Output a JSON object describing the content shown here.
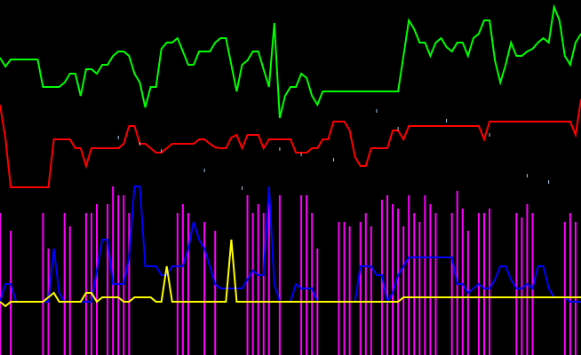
{
  "chart_data": {
    "type": "line",
    "title": "",
    "xlabel": "",
    "ylabel": "",
    "grid": false,
    "legend": "none",
    "background": "#000000",
    "x": [
      0,
      1,
      2,
      3,
      4,
      5,
      6,
      7,
      8,
      9,
      10,
      11,
      12,
      13,
      14,
      15,
      16,
      17,
      18,
      19,
      20,
      21,
      22,
      23,
      24,
      25,
      26,
      27,
      28,
      29,
      30,
      31,
      32,
      33,
      34,
      35,
      36,
      37,
      38,
      39,
      40,
      41,
      42,
      43,
      44,
      45,
      46,
      47,
      48,
      49,
      50,
      51,
      52,
      53,
      54,
      55,
      56,
      57,
      58,
      59,
      60,
      61,
      62,
      63,
      64,
      65,
      66,
      67,
      68,
      69,
      70,
      71,
      72,
      73,
      74,
      75,
      76,
      77,
      78,
      79,
      80,
      81,
      82,
      83,
      84,
      85,
      86,
      87,
      88,
      89,
      90,
      91,
      92,
      93,
      94,
      95,
      96,
      97,
      98,
      99,
      100,
      101,
      102,
      103,
      104,
      105,
      106,
      107,
      108
    ],
    "xlim": [
      0,
      108
    ],
    "ylim": [
      0,
      400
    ],
    "series": [
      {
        "color": "#00ff00",
        "style": "line",
        "values": [
          335,
          325,
          333,
          333,
          333,
          333,
          333,
          333,
          302,
          302,
          302,
          302,
          307,
          317,
          317,
          292,
          322,
          322,
          317,
          327,
          327,
          337,
          342,
          342,
          337,
          317,
          307,
          279,
          302,
          302,
          345,
          352,
          352,
          357,
          342,
          327,
          327,
          342,
          342,
          342,
          352,
          357,
          357,
          327,
          297,
          327,
          332,
          342,
          342,
          322,
          302,
          374,
          267,
          292,
          302,
          302,
          317,
          312,
          292,
          282,
          297,
          297,
          297,
          297,
          297,
          297,
          297,
          297,
          297,
          297,
          297,
          297,
          297,
          297,
          297,
          337,
          377,
          367,
          352,
          352,
          337,
          352,
          357,
          347,
          342,
          352,
          352,
          337,
          357,
          362,
          377,
          377,
          332,
          307,
          327,
          352,
          337,
          337,
          342,
          345,
          352,
          357,
          352,
          392,
          377,
          337,
          327,
          352,
          362
        ]
      },
      {
        "color": "#ff0000",
        "style": "line",
        "values": [
          282,
          244,
          189,
          189,
          189,
          189,
          189,
          189,
          189,
          189,
          243,
          243,
          243,
          243,
          233,
          233,
          213,
          233,
          233,
          233,
          233,
          233,
          233,
          238,
          258,
          258,
          238,
          238,
          233,
          228,
          228,
          233,
          238,
          238,
          238,
          238,
          238,
          243,
          243,
          238,
          234,
          233,
          233,
          245,
          248,
          233,
          248,
          248,
          248,
          233,
          243,
          243,
          243,
          243,
          243,
          228,
          228,
          228,
          233,
          233,
          243,
          243,
          263,
          263,
          263,
          253,
          223,
          213,
          213,
          233,
          233,
          233,
          233,
          253,
          253,
          243,
          258,
          258,
          258,
          258,
          258,
          258,
          258,
          258,
          258,
          258,
          258,
          258,
          258,
          258,
          243,
          263,
          263,
          263,
          263,
          263,
          263,
          263,
          263,
          263,
          263,
          263,
          263,
          263,
          263,
          263,
          263,
          248,
          288
        ]
      },
      {
        "color": "#0000ff",
        "style": "line",
        "values": [
          60,
          80,
          80,
          60,
          60,
          60,
          60,
          60,
          60,
          60,
          120,
          70,
          60,
          60,
          60,
          60,
          60,
          60,
          95,
          130,
          130,
          80,
          80,
          80,
          110,
          190,
          190,
          100,
          100,
          100,
          90,
          90,
          100,
          100,
          100,
          120,
          150,
          130,
          120,
          100,
          80,
          75,
          75,
          75,
          75,
          75,
          85,
          95,
          90,
          90,
          190,
          80,
          60,
          60,
          60,
          80,
          75,
          75,
          75,
          60,
          60,
          60,
          60,
          60,
          60,
          60,
          60,
          100,
          100,
          100,
          90,
          90,
          60,
          70,
          90,
          100,
          110,
          110,
          110,
          110,
          110,
          110,
          110,
          110,
          110,
          80,
          80,
          70,
          75,
          80,
          75,
          75,
          85,
          100,
          100,
          85,
          75,
          75,
          80,
          75,
          100,
          100,
          75,
          65,
          65,
          65,
          60,
          60,
          60
        ]
      },
      {
        "color": "#ffff00",
        "style": "line",
        "values": [
          60,
          55,
          60,
          60,
          60,
          60,
          60,
          60,
          60,
          65,
          70,
          60,
          60,
          60,
          60,
          60,
          70,
          70,
          60,
          65,
          65,
          65,
          65,
          60,
          60,
          65,
          65,
          65,
          65,
          60,
          60,
          100,
          60,
          60,
          60,
          60,
          60,
          60,
          60,
          60,
          60,
          60,
          60,
          130,
          60,
          60,
          60,
          60,
          60,
          60,
          60,
          60,
          60,
          60,
          60,
          60,
          60,
          60,
          60,
          60,
          60,
          60,
          60,
          60,
          60,
          60,
          60,
          60,
          60,
          60,
          60,
          60,
          60,
          60,
          60,
          65,
          65,
          65,
          65,
          65,
          65,
          65,
          65,
          65,
          65,
          65,
          65,
          65,
          65,
          65,
          65,
          65,
          65,
          65,
          65,
          65,
          65,
          65,
          65,
          65,
          65,
          65,
          65,
          65,
          65,
          65,
          65,
          65,
          65
        ]
      },
      {
        "color": "#ff00ff",
        "style": "stem",
        "values": [
          160,
          0,
          140,
          0,
          0,
          0,
          0,
          0,
          160,
          120,
          0,
          0,
          160,
          145,
          0,
          0,
          160,
          160,
          170,
          0,
          170,
          190,
          180,
          180,
          160,
          0,
          0,
          0,
          0,
          0,
          0,
          0,
          0,
          160,
          170,
          160,
          0,
          0,
          150,
          0,
          140,
          0,
          0,
          0,
          0,
          0,
          180,
          160,
          170,
          160,
          180,
          0,
          180,
          0,
          0,
          0,
          180,
          180,
          160,
          120,
          0,
          0,
          0,
          150,
          150,
          145,
          0,
          150,
          160,
          145,
          0,
          175,
          180,
          170,
          165,
          145,
          180,
          160,
          150,
          180,
          170,
          160,
          0,
          0,
          160,
          185,
          165,
          140,
          0,
          160,
          160,
          165,
          0,
          0,
          0,
          0,
          160,
          155,
          170,
          160,
          0,
          0,
          0,
          0,
          0,
          150,
          160,
          150,
          0
        ]
      }
    ],
    "markers": {
      "color": "#aaccee",
      "points": [
        [
          22,
          245
        ],
        [
          26,
          238
        ],
        [
          30,
          230
        ],
        [
          38,
          208
        ],
        [
          45,
          188
        ],
        [
          52,
          232
        ],
        [
          56,
          226
        ],
        [
          62,
          220
        ],
        [
          70,
          275
        ],
        [
          74,
          255
        ],
        [
          83,
          264
        ],
        [
          91,
          248
        ],
        [
          98,
          202
        ],
        [
          102,
          195
        ]
      ]
    }
  }
}
